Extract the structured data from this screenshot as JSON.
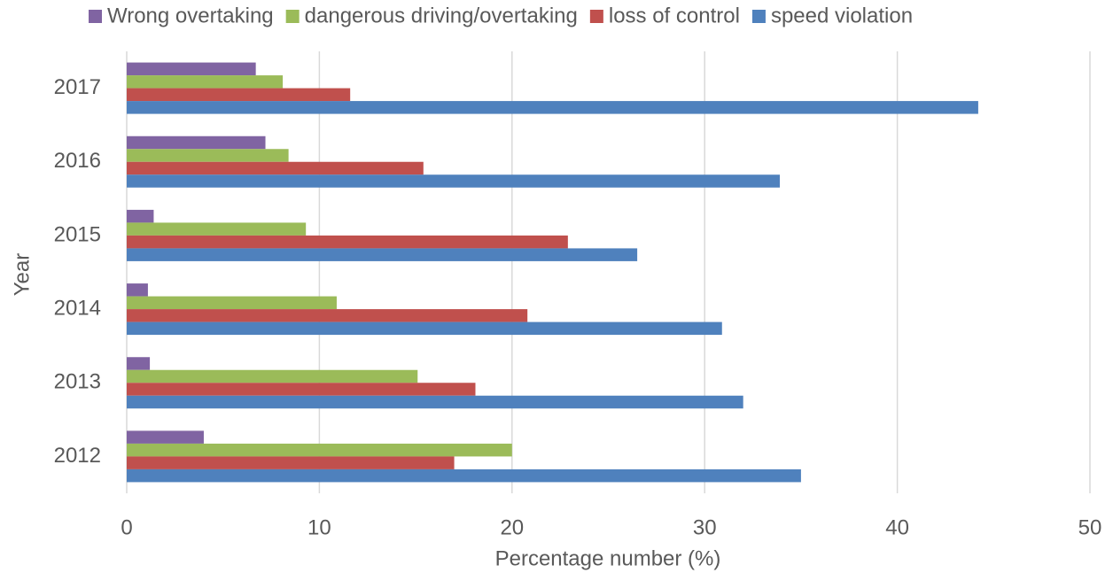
{
  "chart_data": {
    "type": "bar",
    "orientation": "horizontal",
    "categories": [
      "2012",
      "2013",
      "2014",
      "2015",
      "2016",
      "2017"
    ],
    "series": [
      {
        "name": "Wrong overtaking",
        "color": "#8064a2",
        "values": [
          4.0,
          1.2,
          1.1,
          1.4,
          7.2,
          6.7
        ]
      },
      {
        "name": "dangerous driving/overtaking",
        "color": "#9bbb59",
        "values": [
          20.0,
          15.1,
          10.9,
          9.3,
          8.4,
          8.1
        ]
      },
      {
        "name": "loss of control",
        "color": "#c0504d",
        "values": [
          17.0,
          18.1,
          20.8,
          22.9,
          15.4,
          11.6
        ]
      },
      {
        "name": "speed violation",
        "color": "#4f81bd",
        "values": [
          35.0,
          32.0,
          30.9,
          26.5,
          33.9,
          44.2
        ]
      }
    ],
    "x_label": "Percentage number (%)",
    "y_label": "Year",
    "xlim": [
      0,
      50
    ],
    "xticks": [
      0,
      10,
      20,
      30,
      40,
      50
    ],
    "grid": true,
    "legend": "top"
  }
}
